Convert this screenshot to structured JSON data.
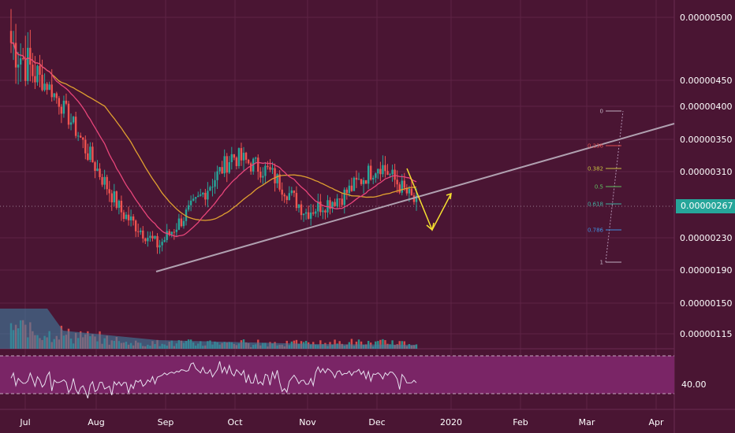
{
  "chart_data": [
    {
      "type": "candlestick",
      "symbol_pair_shown": "",
      "y_axis_ticks": [
        "0.00000500",
        "0.00000450",
        "0.00000400",
        "0.00000350",
        "0.00000310",
        "0.00000267",
        "0.00000230",
        "0.00000190",
        "0.00000150",
        "0.00000115"
      ],
      "current_price_label": "0.00000267",
      "x_axis_ticks": [
        "Jul",
        "Aug",
        "Sep",
        "Oct",
        "Nov",
        "Dec",
        "2020",
        "Feb",
        "Mar",
        "Apr"
      ],
      "approx_close_path": [
        {
          "x": "Jul",
          "y": 4.8e-06
        },
        {
          "x": "mid-Jul",
          "y": 4.4e-06
        },
        {
          "x": "Aug",
          "y": 3.4e-06
        },
        {
          "x": "mid-Aug",
          "y": 2.6e-06
        },
        {
          "x": "Sep",
          "y": 2.2e-06
        },
        {
          "x": "mid-Sep",
          "y": 2.7e-06
        },
        {
          "x": "Oct",
          "y": 3.3e-06
        },
        {
          "x": "mid-Oct",
          "y": 3.1e-06
        },
        {
          "x": "Nov",
          "y": 2.6e-06
        },
        {
          "x": "mid-Nov",
          "y": 2.8e-06
        },
        {
          "x": "Dec",
          "y": 3.2e-06
        },
        {
          "x": "mid-Dec",
          "y": 2.7e-06
        }
      ],
      "moving_averages": [
        {
          "color": "#e0a030"
        },
        {
          "color": "#e8457a"
        }
      ],
      "trendline": {
        "color": "#b0a0b0"
      },
      "fibonacci_levels": [
        {
          "label": "0",
          "color": "#c0b0c0"
        },
        {
          "label": "0.236",
          "color": "#e05050"
        },
        {
          "label": "0.382",
          "color": "#c8c040"
        },
        {
          "label": "0.5",
          "color": "#60c060"
        },
        {
          "label": "0.618",
          "color": "#40b0a0"
        },
        {
          "label": "0.786",
          "color": "#4090e0"
        },
        {
          "label": "1",
          "color": "#c0b0c0"
        }
      ],
      "projection_arrows_color": "#f5e030"
    },
    {
      "type": "line",
      "panel": "RSI",
      "level_label": "40.00",
      "band_color": "#7a2566",
      "line_color": "#e8e0f0"
    }
  ],
  "colors": {
    "background": "#4a1533",
    "grid": "#5e2446",
    "up_candle": "#26a69a",
    "down_candle": "#ef5350",
    "price_badge": "#26a69a"
  }
}
